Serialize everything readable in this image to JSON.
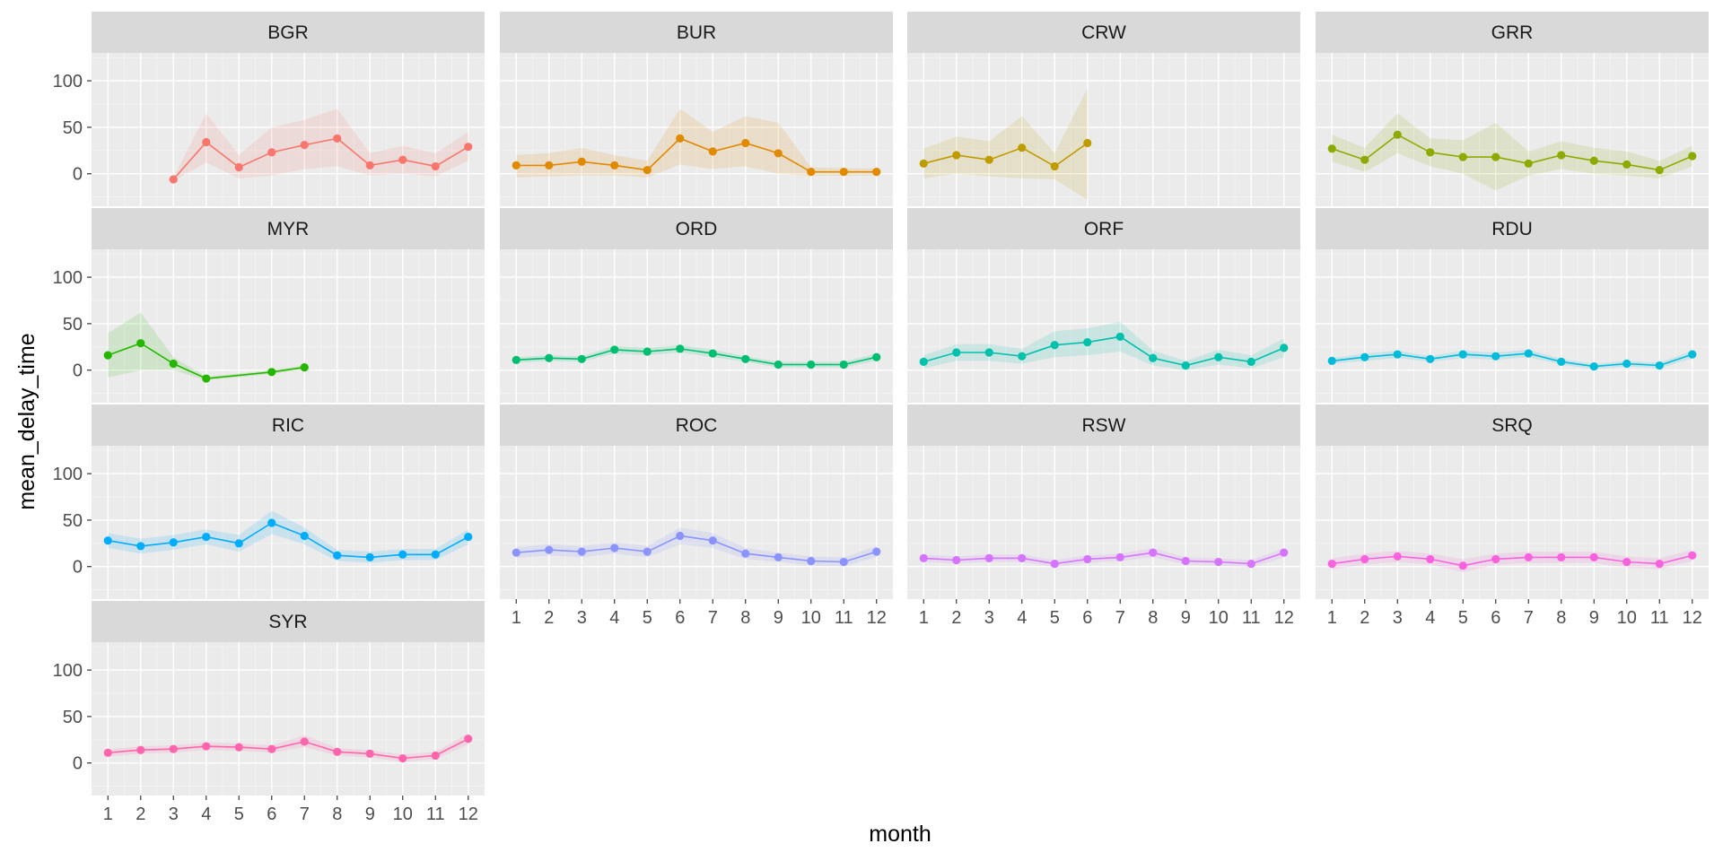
{
  "chart_data": {
    "type": "line",
    "facet": "origin",
    "xlabel": "month",
    "ylabel": "mean_delay_time",
    "xlim": [
      0.5,
      12.5
    ],
    "ylim": [
      -35,
      130
    ],
    "y_ticks": [
      0,
      50,
      100
    ],
    "x_ticks": [
      1,
      2,
      3,
      4,
      5,
      6,
      7,
      8,
      9,
      10,
      11,
      12
    ],
    "grid": true,
    "confidence_band": true,
    "panels": [
      {
        "name": "BGR",
        "color": "#F8766D",
        "x": [
          3,
          4,
          5,
          6,
          7,
          8,
          9,
          10,
          11,
          12
        ],
        "y": [
          -6,
          34,
          7,
          23,
          31,
          38,
          9,
          15,
          8,
          29
        ],
        "lo": [
          -8,
          12,
          -5,
          -2,
          5,
          8,
          -2,
          0,
          -3,
          14
        ],
        "hi": [
          -4,
          65,
          20,
          50,
          58,
          70,
          22,
          30,
          22,
          45
        ]
      },
      {
        "name": "BUR",
        "color": "#E18A00",
        "x": [
          1,
          2,
          3,
          4,
          5,
          6,
          7,
          8,
          9,
          10,
          11,
          12
        ],
        "y": [
          9,
          9,
          13,
          9,
          4,
          38,
          24,
          33,
          22,
          2,
          2,
          2
        ],
        "lo": [
          -4,
          -3,
          -2,
          -2,
          -4,
          10,
          5,
          8,
          0,
          -2,
          -2,
          -2
        ],
        "hi": [
          20,
          22,
          28,
          20,
          14,
          70,
          45,
          62,
          55,
          7,
          6,
          6
        ]
      },
      {
        "name": "CRW",
        "color": "#BE9C00",
        "x": [
          1,
          2,
          3,
          4,
          5,
          6
        ],
        "y": [
          11,
          20,
          15,
          28,
          8,
          33
        ],
        "lo": [
          -5,
          0,
          -3,
          -5,
          -6,
          -28
        ],
        "hi": [
          27,
          40,
          35,
          62,
          22,
          92
        ]
      },
      {
        "name": "GRR",
        "color": "#8CAB00",
        "x": [
          1,
          2,
          3,
          4,
          5,
          6,
          7,
          8,
          9,
          10,
          11,
          12
        ],
        "y": [
          27,
          15,
          42,
          23,
          18,
          18,
          11,
          20,
          14,
          10,
          4,
          19
        ],
        "lo": [
          13,
          2,
          22,
          8,
          0,
          -18,
          -2,
          5,
          0,
          -2,
          -5,
          8
        ],
        "hi": [
          42,
          28,
          65,
          38,
          36,
          55,
          24,
          35,
          28,
          24,
          14,
          30
        ]
      },
      {
        "name": "MYR",
        "color": "#24B700",
        "x": [
          1,
          2,
          3,
          4,
          6,
          7
        ],
        "y": [
          16,
          29,
          7,
          -9,
          -2,
          3
        ],
        "lo": [
          -8,
          0,
          0,
          -11,
          -4,
          1
        ],
        "hi": [
          40,
          62,
          14,
          -7,
          0,
          5
        ]
      },
      {
        "name": "ORD",
        "color": "#00BE70",
        "x": [
          1,
          2,
          3,
          4,
          5,
          6,
          7,
          8,
          9,
          10,
          11,
          12
        ],
        "y": [
          11,
          13,
          12,
          22,
          20,
          23,
          18,
          12,
          6,
          6,
          6,
          14
        ],
        "lo": [
          8,
          10,
          9,
          18,
          16,
          19,
          14,
          9,
          3,
          3,
          3,
          10
        ],
        "hi": [
          14,
          16,
          15,
          26,
          24,
          27,
          22,
          15,
          9,
          9,
          9,
          18
        ]
      },
      {
        "name": "ORF",
        "color": "#00C1AB",
        "x": [
          1,
          2,
          3,
          4,
          5,
          6,
          7,
          8,
          9,
          10,
          11,
          12
        ],
        "y": [
          9,
          19,
          19,
          15,
          27,
          30,
          36,
          13,
          5,
          14,
          9,
          24
        ],
        "lo": [
          2,
          10,
          10,
          7,
          14,
          16,
          20,
          5,
          0,
          6,
          2,
          14
        ],
        "hi": [
          16,
          28,
          28,
          23,
          42,
          45,
          52,
          21,
          10,
          22,
          16,
          34
        ]
      },
      {
        "name": "RDU",
        "color": "#00BBDA",
        "x": [
          1,
          2,
          3,
          4,
          5,
          6,
          7,
          8,
          9,
          10,
          11,
          12
        ],
        "y": [
          10,
          14,
          17,
          12,
          17,
          15,
          18,
          9,
          4,
          7,
          5,
          17
        ],
        "lo": [
          7,
          10,
          13,
          9,
          13,
          11,
          14,
          6,
          1,
          4,
          2,
          13
        ],
        "hi": [
          13,
          18,
          21,
          15,
          21,
          19,
          22,
          12,
          7,
          10,
          8,
          21
        ]
      },
      {
        "name": "RIC",
        "color": "#00ACFC",
        "x": [
          1,
          2,
          3,
          4,
          5,
          6,
          7,
          8,
          9,
          10,
          11,
          12
        ],
        "y": [
          28,
          22,
          26,
          32,
          25,
          47,
          33,
          12,
          10,
          13,
          13,
          32
        ],
        "lo": [
          20,
          14,
          18,
          24,
          16,
          35,
          24,
          6,
          4,
          7,
          7,
          24
        ],
        "hi": [
          36,
          30,
          34,
          40,
          34,
          60,
          42,
          18,
          16,
          19,
          19,
          40
        ]
      },
      {
        "name": "ROC",
        "color": "#8B93FF",
        "x": [
          1,
          2,
          3,
          4,
          5,
          6,
          7,
          8,
          9,
          10,
          11,
          12
        ],
        "y": [
          15,
          18,
          16,
          20,
          16,
          33,
          28,
          14,
          10,
          6,
          5,
          16
        ],
        "lo": [
          9,
          12,
          10,
          14,
          10,
          24,
          20,
          8,
          5,
          1,
          0,
          10
        ],
        "hi": [
          21,
          24,
          22,
          26,
          22,
          42,
          36,
          20,
          15,
          11,
          10,
          22
        ]
      },
      {
        "name": "RSW",
        "color": "#D575FE",
        "x": [
          1,
          2,
          3,
          4,
          5,
          6,
          7,
          8,
          9,
          10,
          11,
          12
        ],
        "y": [
          9,
          7,
          9,
          9,
          3,
          8,
          10,
          15,
          6,
          5,
          3,
          15
        ],
        "lo": [
          5,
          3,
          5,
          5,
          -1,
          4,
          6,
          10,
          2,
          1,
          -1,
          10
        ],
        "hi": [
          13,
          11,
          13,
          13,
          7,
          12,
          14,
          20,
          10,
          9,
          7,
          20
        ]
      },
      {
        "name": "SRQ",
        "color": "#F962DD",
        "x": [
          1,
          2,
          3,
          4,
          5,
          6,
          7,
          8,
          9,
          10,
          11,
          12
        ],
        "y": [
          3,
          8,
          11,
          8,
          1,
          8,
          10,
          10,
          10,
          5,
          3,
          12
        ],
        "lo": [
          -3,
          2,
          5,
          2,
          -6,
          2,
          4,
          4,
          4,
          -1,
          -3,
          6
        ],
        "hi": [
          9,
          14,
          17,
          14,
          8,
          14,
          16,
          16,
          16,
          11,
          9,
          18
        ]
      },
      {
        "name": "SYR",
        "color": "#FF65AC",
        "x": [
          1,
          2,
          3,
          4,
          5,
          6,
          7,
          8,
          9,
          10,
          11,
          12
        ],
        "y": [
          11,
          14,
          15,
          18,
          17,
          15,
          23,
          12,
          10,
          5,
          8,
          26
        ],
        "lo": [
          7,
          10,
          11,
          14,
          13,
          11,
          17,
          8,
          6,
          1,
          4,
          20
        ],
        "hi": [
          15,
          18,
          19,
          22,
          21,
          19,
          30,
          16,
          14,
          9,
          12,
          32
        ]
      }
    ]
  }
}
